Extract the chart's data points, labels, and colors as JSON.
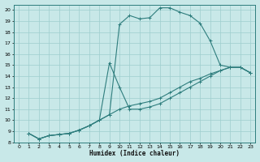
{
  "xlabel": "Humidex (Indice chaleur)",
  "xlim": [
    -0.5,
    23.5
  ],
  "ylim": [
    8,
    20.5
  ],
  "background_color": "#c8e8e8",
  "grid_color": "#9ecece",
  "line_color": "#2e7d7d",
  "xticks": [
    0,
    1,
    2,
    3,
    4,
    5,
    6,
    7,
    8,
    9,
    10,
    11,
    12,
    13,
    14,
    15,
    16,
    17,
    18,
    19,
    20,
    21,
    22,
    23
  ],
  "yticks": [
    8,
    9,
    10,
    11,
    12,
    13,
    14,
    15,
    16,
    17,
    18,
    19,
    20
  ],
  "line1_x": [
    1,
    2,
    3,
    4,
    5,
    6,
    7,
    8,
    9,
    10,
    11,
    12,
    13,
    14,
    15,
    16,
    17,
    18,
    19,
    20,
    21,
    22,
    23
  ],
  "line1_y": [
    8.8,
    8.3,
    8.6,
    8.7,
    8.8,
    9.1,
    9.5,
    10.0,
    10.5,
    11.0,
    11.3,
    11.5,
    11.7,
    12.0,
    12.5,
    13.0,
    13.5,
    13.8,
    14.2,
    14.5,
    14.8,
    14.8,
    14.3
  ],
  "line2_x": [
    1,
    2,
    3,
    4,
    5,
    6,
    7,
    8,
    9,
    10,
    11,
    12,
    13,
    14,
    15,
    16,
    17,
    18,
    19,
    20,
    21,
    22,
    23
  ],
  "line2_y": [
    8.8,
    8.3,
    8.6,
    8.7,
    8.8,
    9.1,
    9.5,
    10.0,
    10.5,
    18.7,
    19.5,
    19.2,
    19.3,
    20.2,
    20.2,
    19.8,
    19.5,
    18.8,
    17.2,
    15.0,
    14.8,
    14.8,
    14.3
  ],
  "line3_x": [
    1,
    2,
    3,
    4,
    5,
    6,
    7,
    8,
    9,
    10,
    11,
    12,
    13,
    14,
    15,
    16,
    17,
    18,
    19,
    20,
    21,
    22,
    23
  ],
  "line3_y": [
    8.8,
    8.3,
    8.6,
    8.7,
    8.8,
    9.1,
    9.5,
    10.0,
    15.2,
    13.0,
    11.0,
    11.0,
    11.2,
    11.5,
    12.0,
    12.5,
    13.0,
    13.5,
    14.0,
    14.5,
    14.8,
    14.8,
    14.3
  ]
}
